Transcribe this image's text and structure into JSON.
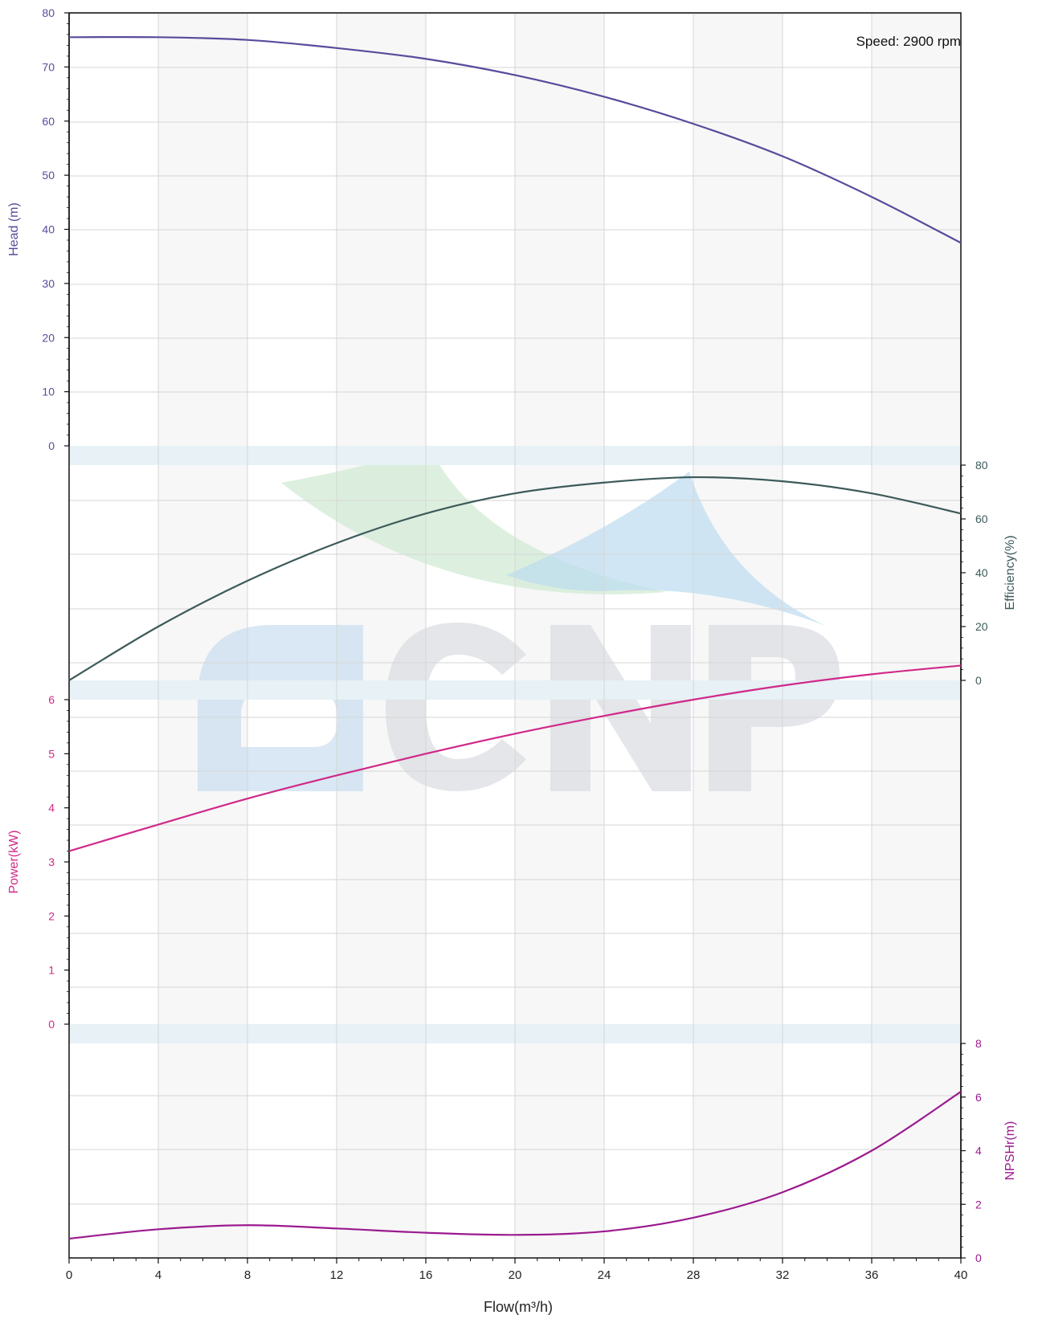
{
  "annotation": "Speed: 2900 rpm",
  "colors": {
    "head": "#5b4a9b",
    "efficiency": "#3d5a5a",
    "power": "#d0298a",
    "npsh": "#9b1a8f",
    "grid": "#d6d6d6",
    "band": "#e7f1f6",
    "stripe": "#f7f7f7"
  },
  "chart_data": {
    "type": "line",
    "x_label": "Flow(m³/h)",
    "x_range": [
      0,
      40
    ],
    "x_ticks": [
      "0",
      "4",
      "8",
      "12",
      "16",
      "20",
      "24",
      "28",
      "32",
      "36",
      "40"
    ],
    "series": [
      {
        "key": "head",
        "axis_label": "Head (m)",
        "axis_side": "left",
        "range": [
          0,
          80
        ],
        "ticks": [
          "0",
          "10",
          "20",
          "30",
          "40",
          "50",
          "60",
          "70",
          "80"
        ],
        "x": [
          0,
          4,
          8,
          12,
          16,
          20,
          24,
          28,
          32,
          36,
          40
        ],
        "y": [
          75.5,
          75.5,
          75.0,
          73.5,
          71.5,
          68.5,
          64.5,
          59.5,
          53.5,
          46.0,
          37.5
        ]
      },
      {
        "key": "efficiency",
        "axis_label": "Efficiency(%)",
        "axis_side": "right",
        "range": [
          0,
          80
        ],
        "ticks": [
          "0",
          "20",
          "40",
          "60",
          "80"
        ],
        "x": [
          0,
          4,
          8,
          12,
          16,
          20,
          24,
          28,
          32,
          36,
          40
        ],
        "y": [
          0,
          20,
          37,
          51,
          62,
          69.5,
          73.5,
          75.5,
          74,
          69.5,
          62
        ]
      },
      {
        "key": "power",
        "axis_label": "Power(kW)",
        "axis_side": "left",
        "range": [
          0,
          6
        ],
        "ticks": [
          "0",
          "1",
          "2",
          "3",
          "4",
          "5",
          "6"
        ],
        "x": [
          0,
          4,
          8,
          12,
          16,
          20,
          24,
          28,
          32,
          36,
          40
        ],
        "y": [
          3.2,
          3.69,
          4.17,
          4.6,
          5.0,
          5.37,
          5.7,
          6.0,
          6.26,
          6.47,
          6.63
        ]
      },
      {
        "key": "npsh",
        "axis_label": "NPSHr(m)",
        "axis_side": "right",
        "range": [
          0,
          8
        ],
        "ticks": [
          "0",
          "2",
          "4",
          "6",
          "8"
        ],
        "x": [
          0,
          4,
          8,
          12,
          16,
          20,
          24,
          28,
          32,
          36,
          40
        ],
        "y": [
          0.72,
          1.07,
          1.22,
          1.1,
          0.94,
          0.86,
          0.99,
          1.5,
          2.45,
          4.0,
          6.2
        ]
      }
    ]
  }
}
